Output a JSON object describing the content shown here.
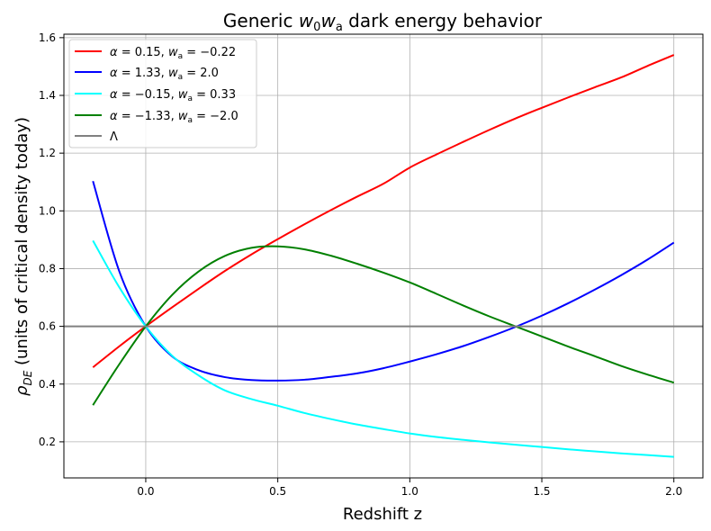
{
  "chart_data": {
    "type": "line",
    "title": "Generic w₀wₐ dark energy behavior",
    "xlabel": "Redshift z",
    "ylabel": "ρ_DE (units of critical density today)",
    "xlim": [
      -0.31,
      2.11
    ],
    "ylim": [
      0.075,
      1.612
    ],
    "xticks": [
      0.0,
      0.5,
      1.0,
      1.5,
      2.0
    ],
    "xtick_labels": [
      "0.0",
      "0.5",
      "1.0",
      "1.5",
      "2.0"
    ],
    "yticks": [
      0.2,
      0.4,
      0.6,
      0.8,
      1.0,
      1.2,
      1.4,
      1.6
    ],
    "ytick_labels": [
      "0.2",
      "0.4",
      "0.6",
      "0.8",
      "1.0",
      "1.2",
      "1.4",
      "1.6"
    ],
    "grid": true,
    "legend_position": "top-left",
    "x": [
      -0.2,
      -0.1,
      0.0,
      0.1,
      0.2,
      0.3,
      0.4,
      0.5,
      0.6,
      0.7,
      0.8,
      0.9,
      1.0,
      1.1,
      1.2,
      1.3,
      1.4,
      1.5,
      1.6,
      1.7,
      1.8,
      1.9,
      2.0
    ],
    "series": [
      {
        "name": "α = 0.15, wₐ = −0.22",
        "color": "#ff0000",
        "values": [
          0.458,
          0.531,
          0.6,
          0.666,
          0.73,
          0.792,
          0.849,
          0.902,
          0.953,
          1.002,
          1.049,
          1.094,
          1.15,
          1.195,
          1.238,
          1.28,
          1.32,
          1.357,
          1.393,
          1.428,
          1.462,
          1.502,
          1.54
        ]
      },
      {
        "name": "α = 1.33, wₐ = 2.0",
        "color": "#0000ff",
        "values": [
          1.103,
          0.79,
          0.6,
          0.496,
          0.448,
          0.424,
          0.414,
          0.412,
          0.415,
          0.425,
          0.437,
          0.455,
          0.478,
          0.503,
          0.531,
          0.563,
          0.598,
          0.637,
          0.68,
          0.727,
          0.777,
          0.831,
          0.89
        ]
      },
      {
        "name": "α = −0.15, wₐ = 0.33",
        "color": "#00ffff",
        "values": [
          0.897,
          0.735,
          0.6,
          0.498,
          0.43,
          0.378,
          0.348,
          0.325,
          0.3,
          0.279,
          0.26,
          0.244,
          0.229,
          0.217,
          0.207,
          0.198,
          0.19,
          0.182,
          0.174,
          0.167,
          0.16,
          0.154,
          0.148
        ]
      },
      {
        "name": "α = −1.33, wₐ = −2.0",
        "color": "#008000",
        "values": [
          0.327,
          0.469,
          0.6,
          0.709,
          0.79,
          0.844,
          0.872,
          0.877,
          0.867,
          0.845,
          0.817,
          0.786,
          0.752,
          0.713,
          0.673,
          0.635,
          0.6,
          0.565,
          0.53,
          0.497,
          0.463,
          0.433,
          0.405
        ]
      },
      {
        "name": "Λ",
        "color": "#808080",
        "values": [
          0.6,
          0.6,
          0.6,
          0.6,
          0.6,
          0.6,
          0.6,
          0.6,
          0.6,
          0.6,
          0.6,
          0.6,
          0.6,
          0.6,
          0.6,
          0.6,
          0.6,
          0.6,
          0.6,
          0.6,
          0.6,
          0.6,
          0.6
        ],
        "horizontal_line": true
      }
    ]
  }
}
